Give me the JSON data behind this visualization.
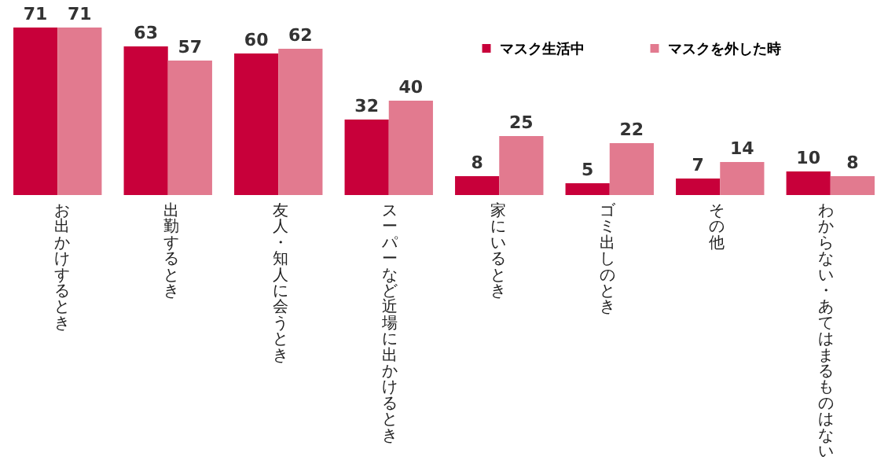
{
  "chart_data": {
    "type": "bar",
    "categories": [
      "お出かけするとき",
      "出勤するとき",
      "友人・知人に会うとき",
      "スーパーなど近場に出かけるとき",
      "家にいるとき",
      "ゴミ出しのとき",
      "その他",
      "わからない・あてはまるものはない"
    ],
    "series": [
      {
        "name": "マスク生活中",
        "color": "#c8003a",
        "values": [
          71,
          63,
          60,
          32,
          8,
          5,
          7,
          10
        ]
      },
      {
        "name": "マスクを外した時",
        "color": "#e27a8f",
        "values": [
          71,
          57,
          62,
          40,
          25,
          22,
          14,
          8
        ]
      }
    ],
    "data_labels": true,
    "legend": "top right"
  }
}
